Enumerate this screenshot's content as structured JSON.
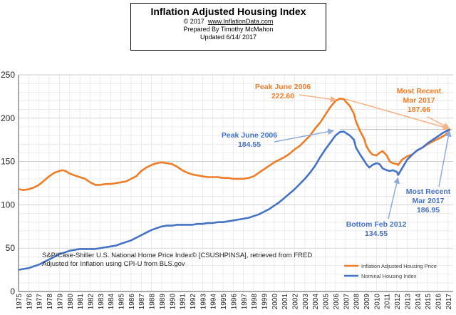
{
  "header": {
    "title": "Inflation Adjusted Housing Index",
    "copyright": "© 2017",
    "site": "www.InflationData.com",
    "prepared": "Prepared  By Timothy McMahon",
    "updated": "Updated   6/14/ 2017"
  },
  "colors": {
    "inflation_adjusted": "#ee7d28",
    "nominal": "#4472c4",
    "grid": "#c8c8c8",
    "reference_line": "#bfbfbf"
  },
  "chart_data": {
    "type": "line",
    "title": "Inflation Adjusted Housing Index",
    "xlabel": "",
    "ylabel": "",
    "ylim": [
      0,
      250
    ],
    "yticks": [
      0,
      50,
      100,
      150,
      200,
      250
    ],
    "xlim": [
      1975,
      2017.5
    ],
    "xtick_labels": [
      "1975",
      "1976",
      "1977",
      "1978",
      "1979",
      "1980",
      "1981",
      "1982",
      "1983",
      "1984",
      "1985",
      "1986",
      "1987",
      "1988",
      "1989",
      "1990",
      "1991",
      "1992",
      "1993",
      "1994",
      "1995",
      "1996",
      "1997",
      "1998",
      "1999",
      "2000",
      "2001",
      "2002",
      "2003",
      "2004",
      "2005",
      "2006",
      "2007",
      "2008",
      "2009",
      "2010",
      "2011",
      "2012",
      "2013",
      "2014",
      "2015",
      "2016",
      "2017"
    ],
    "grid": true,
    "legend_position": "bottom-right",
    "source_note": [
      "S&P/Case-Shiller U.S. National Home Price Index© [CSUSHPINSA], retrieved from FRED",
      "Adjusted for Inflation using CPI-U from BLS.gov"
    ],
    "reference_line_y": 186.95,
    "series": [
      {
        "name": "Inflation Adjusted Housing Price",
        "color": "#ee7d28",
        "x": [
          1975,
          1975.5,
          1976,
          1976.5,
          1977,
          1977.5,
          1978,
          1978.5,
          1979,
          1979.3,
          1979.6,
          1980,
          1980.5,
          1981,
          1981.5,
          1982,
          1982.5,
          1983,
          1983.5,
          1984,
          1984.5,
          1985,
          1985.5,
          1986,
          1986.5,
          1987,
          1987.5,
          1988,
          1988.5,
          1989,
          1989.5,
          1990,
          1990.5,
          1991,
          1991.5,
          1992,
          1992.5,
          1993,
          1993.5,
          1994,
          1994.5,
          1995,
          1995.5,
          1996,
          1996.5,
          1997,
          1997.5,
          1998,
          1998.5,
          1999,
          1999.5,
          2000,
          2000.5,
          2001,
          2001.5,
          2002,
          2002.5,
          2003,
          2003.5,
          2004,
          2004.5,
          2005,
          2005.5,
          2006,
          2006.42,
          2006.8,
          2007,
          2007.4,
          2007.8,
          2008,
          2008.4,
          2008.8,
          2009,
          2009.3,
          2009.6,
          2010,
          2010.3,
          2010.6,
          2011,
          2011.3,
          2011.6,
          2012,
          2012.12,
          2012.5,
          2013,
          2013.5,
          2014,
          2014.5,
          2015,
          2015.5,
          2016,
          2016.5,
          2017,
          2017.2
        ],
        "values": [
          118,
          117,
          118,
          120,
          123,
          128,
          133,
          137,
          139,
          140,
          139,
          136,
          134,
          132,
          130,
          126,
          123,
          123,
          124,
          124,
          125,
          126,
          127,
          130,
          133,
          139,
          143,
          146,
          148,
          149,
          148,
          147,
          144,
          140,
          137,
          135,
          134,
          133,
          132,
          132,
          132,
          131,
          131,
          130,
          130,
          130,
          131,
          133,
          137,
          141,
          145,
          149,
          152,
          155,
          159,
          164,
          168,
          174,
          180,
          188,
          195,
          204,
          213,
          220,
          222.6,
          222,
          219,
          214,
          205,
          196,
          185,
          176,
          168,
          162,
          158,
          157,
          160,
          162,
          157,
          150,
          148,
          147,
          146,
          152,
          156,
          158,
          163,
          166,
          170,
          173,
          176,
          179,
          183,
          187.66
        ]
      },
      {
        "name": "Nominal Housing Index",
        "color": "#4472c4",
        "x": [
          1975,
          1975.5,
          1976,
          1976.5,
          1977,
          1977.5,
          1978,
          1978.5,
          1979,
          1979.5,
          1980,
          1980.5,
          1981,
          1981.5,
          1982,
          1982.5,
          1983,
          1983.5,
          1984,
          1984.5,
          1985,
          1985.5,
          1986,
          1986.5,
          1987,
          1987.5,
          1988,
          1988.5,
          1989,
          1989.5,
          1990,
          1990.5,
          1991,
          1991.5,
          1992,
          1992.5,
          1993,
          1993.5,
          1994,
          1994.5,
          1995,
          1995.5,
          1996,
          1996.5,
          1997,
          1997.5,
          1998,
          1998.5,
          1999,
          1999.5,
          2000,
          2000.5,
          2001,
          2001.5,
          2002,
          2002.5,
          2003,
          2003.5,
          2004,
          2004.5,
          2005,
          2005.5,
          2006,
          2006.42,
          2006.8,
          2007,
          2007.4,
          2007.8,
          2008,
          2008.4,
          2008.8,
          2009,
          2009.3,
          2009.6,
          2010,
          2010.3,
          2010.6,
          2011,
          2011.3,
          2011.6,
          2012,
          2012.12,
          2012.5,
          2013,
          2013.5,
          2014,
          2014.5,
          2015,
          2015.5,
          2016,
          2016.5,
          2017,
          2017.2
        ],
        "values": [
          25,
          26,
          27,
          29,
          31,
          34,
          37,
          40,
          43,
          45,
          47,
          48,
          49,
          49,
          49,
          49,
          50,
          51,
          52,
          53,
          55,
          57,
          59,
          62,
          65,
          68,
          71,
          73,
          75,
          76,
          76,
          77,
          77,
          77,
          77,
          78,
          78,
          79,
          79,
          80,
          80,
          81,
          82,
          83,
          84,
          85,
          87,
          89,
          92,
          95,
          99,
          103,
          108,
          113,
          118,
          124,
          130,
          137,
          145,
          155,
          164,
          172,
          180,
          184,
          184.55,
          183,
          180,
          175,
          166,
          158,
          151,
          147,
          143,
          146,
          148,
          147,
          142,
          140,
          139,
          140,
          138,
          134.55,
          142,
          152,
          158,
          163,
          166,
          171,
          175,
          179,
          183,
          186,
          186.95
        ]
      }
    ],
    "annotations": [
      {
        "text": "Peak June 2006",
        "value": "222.60",
        "color": "#ee7d28"
      },
      {
        "text": "Peak June 2006",
        "value": "184.55",
        "color": "#4472c4"
      },
      {
        "text": "Most Recent",
        "text2": "Mar 2017",
        "value": "187.66",
        "color": "#ee7d28"
      },
      {
        "text": "Most Recent",
        "text2": "Mar 2017",
        "value": "186.95",
        "color": "#4472c4"
      },
      {
        "text": "Bottom Feb 2012",
        "value": "134.55",
        "color": "#4472c4"
      }
    ]
  }
}
